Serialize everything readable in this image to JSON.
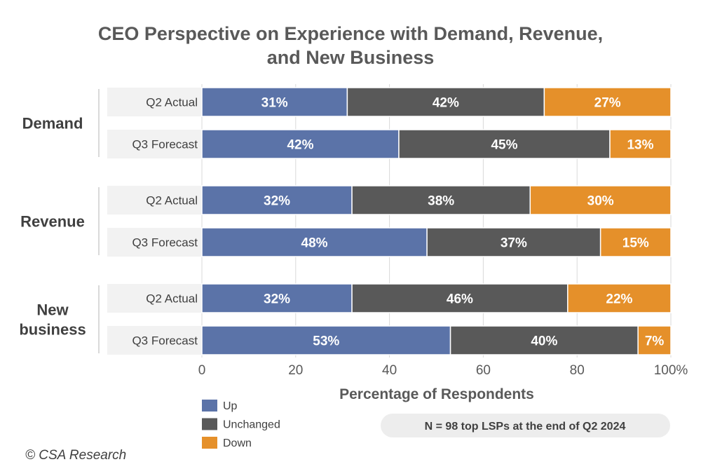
{
  "chart_data": {
    "type": "bar",
    "orientation": "horizontal",
    "stacked": true,
    "title": [
      "CEO Perspective on Experience with Demand, Revenue,",
      "and New Business"
    ],
    "xlabel": "Percentage of Respondents",
    "xlim": [
      0,
      100
    ],
    "x_ticks": [
      "0",
      "20",
      "40",
      "60",
      "80",
      "100%"
    ],
    "grid": "vertical",
    "legend_position": "bottom-left",
    "series": [
      {
        "name": "Up",
        "color": "#5b73a8"
      },
      {
        "name": "Unchanged",
        "color": "#595959"
      },
      {
        "name": "Down",
        "color": "#e5902a"
      }
    ],
    "groups": [
      {
        "label": [
          "Demand"
        ],
        "rows": [
          {
            "label": "Q2 Actual",
            "values": [
              31,
              42,
              27
            ],
            "labels": [
              "31%",
              "42%",
              "27%"
            ]
          },
          {
            "label": "Q3 Forecast",
            "values": [
              42,
              45,
              13
            ],
            "labels": [
              "42%",
              "45%",
              "13%"
            ]
          }
        ]
      },
      {
        "label": [
          "Revenue"
        ],
        "rows": [
          {
            "label": "Q2 Actual",
            "values": [
              32,
              38,
              30
            ],
            "labels": [
              "32%",
              "38%",
              "30%"
            ]
          },
          {
            "label": "Q3 Forecast",
            "values": [
              48,
              37,
              15
            ],
            "labels": [
              "48%",
              "37%",
              "15%"
            ]
          }
        ]
      },
      {
        "label": [
          "New",
          "business"
        ],
        "rows": [
          {
            "label": "Q2 Actual",
            "values": [
              32,
              46,
              22
            ],
            "labels": [
              "32%",
              "46%",
              "22%"
            ]
          },
          {
            "label": "Q3 Forecast",
            "values": [
              53,
              40,
              7
            ],
            "labels": [
              "53%",
              "40%",
              "7%"
            ]
          }
        ]
      }
    ],
    "note": "N = 98 top LSPs at the end of Q2 2024",
    "copyright": "© CSA Research"
  },
  "colors": {
    "grid": "#d9d9d9",
    "row_label_bg": "#f2f2f2",
    "note_bg": "#ededed",
    "bracket": "#d9d9d9",
    "bar_separator": "#ffffff"
  }
}
